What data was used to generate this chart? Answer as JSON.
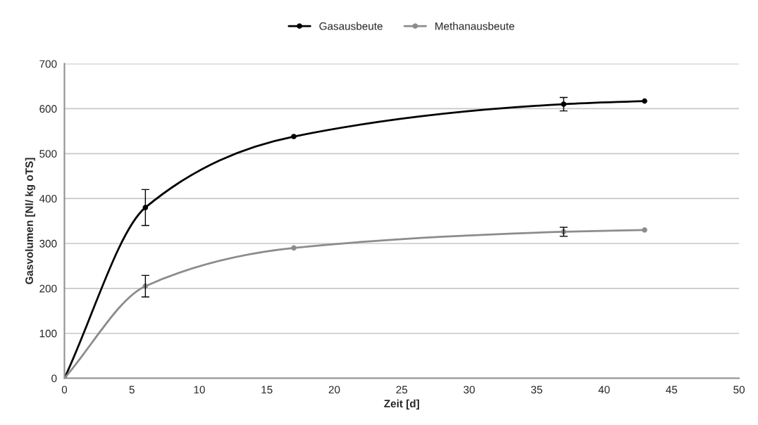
{
  "chart_data": {
    "type": "line",
    "xlabel": "Zeit [d]",
    "ylabel": "Gasvolumen [Nl/ kg oTS]",
    "x": [
      0,
      6,
      17,
      37,
      43
    ],
    "series": [
      {
        "name": "Gasausbeute",
        "color": "#000000",
        "values": [
          0,
          380,
          538,
          610,
          617
        ],
        "errors": [
          null,
          40,
          null,
          15,
          null
        ]
      },
      {
        "name": "Methanausbeute",
        "color": "#8c8c8c",
        "values": [
          0,
          205,
          290,
          326,
          330
        ],
        "errors": [
          null,
          24,
          null,
          10,
          null
        ]
      }
    ],
    "xlim": [
      0,
      50
    ],
    "xticks": [
      0,
      5,
      10,
      15,
      20,
      25,
      30,
      35,
      40,
      45,
      50
    ],
    "ylim": [
      0,
      700
    ],
    "yticks": [
      0,
      100,
      200,
      300,
      400,
      500,
      600,
      700
    ],
    "grid": "y",
    "legend": "top",
    "marker": "circle",
    "line_style": "solid"
  }
}
